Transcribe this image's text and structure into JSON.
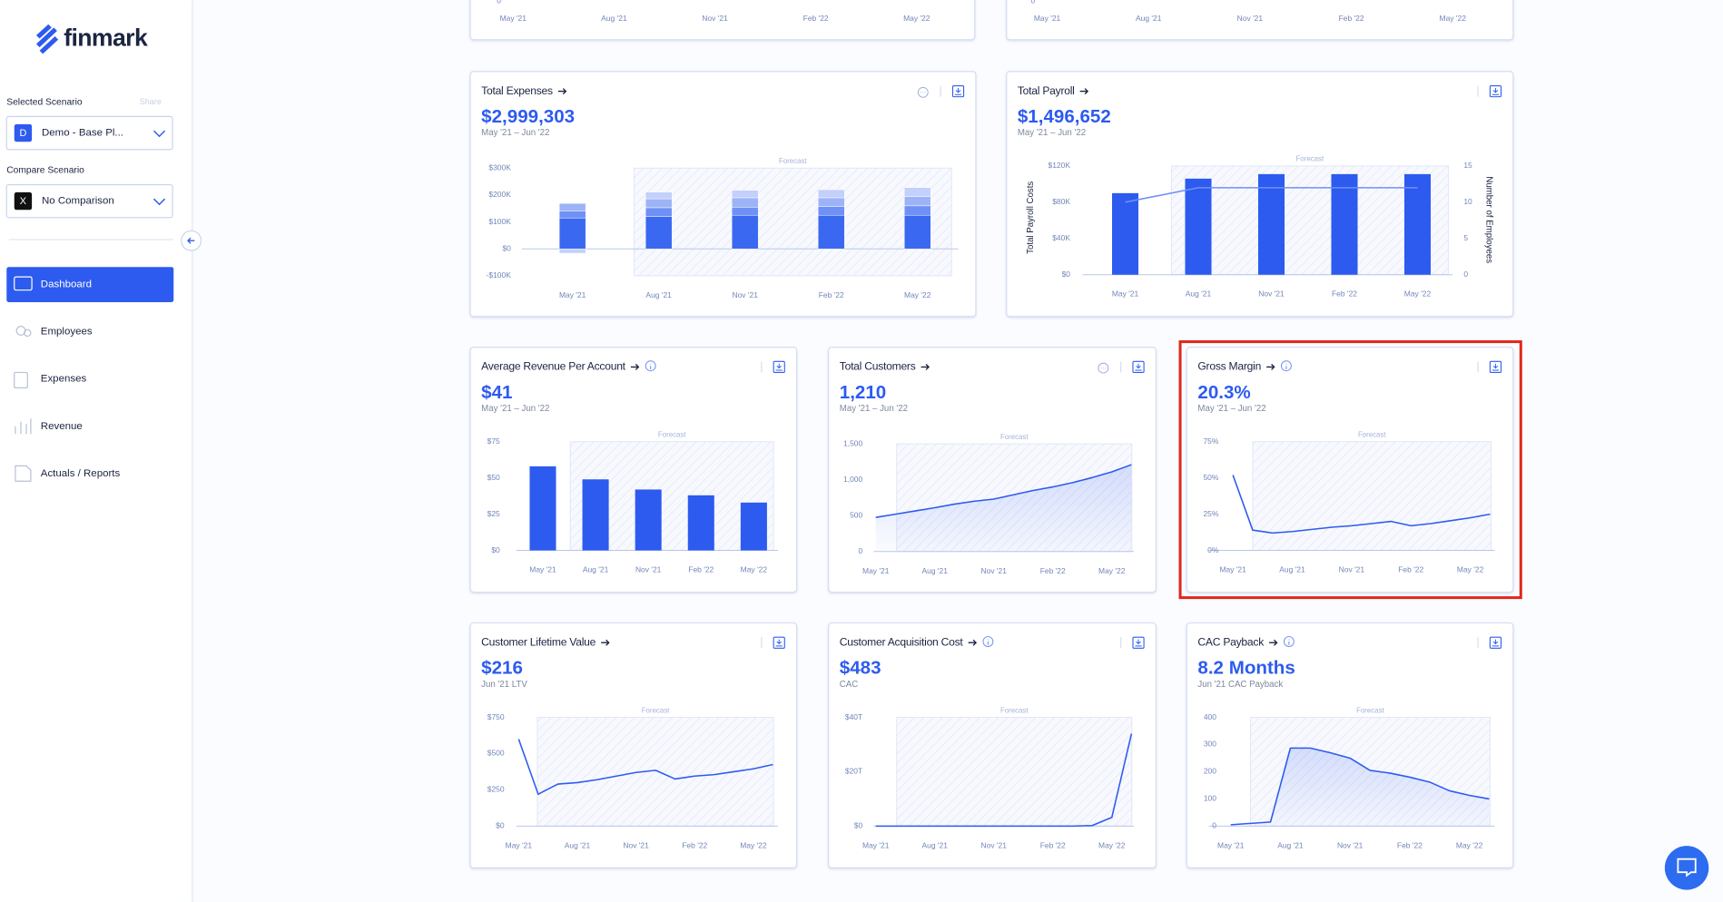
{
  "sidebar": {
    "logo": "finmark",
    "selected_label": "Selected Scenario",
    "share": "Share",
    "selected_badge": "D",
    "selected_value": "Demo - Base Pl...",
    "compare_label": "Compare Scenario",
    "compare_badge": "X",
    "compare_value": "No Comparison",
    "nav": [
      "Dashboard",
      "Employees",
      "Expenses",
      "Revenue",
      "Actuals / Reports"
    ]
  },
  "chart_data": [
    {
      "type": "line",
      "categories": [
        "May '21",
        null,
        null,
        "Aug '21",
        null,
        null,
        "Nov '21",
        null,
        null,
        "Feb '22",
        null,
        null,
        "May '22",
        null
      ],
      "yticks": [
        0
      ]
    },
    {
      "type": "line",
      "categories": [
        "May '21",
        null,
        null,
        "Aug '21",
        null,
        null,
        "Nov '21",
        null,
        null,
        "Feb '22",
        null,
        null,
        "May '22",
        null
      ],
      "yticks": [
        0
      ]
    },
    {
      "type": "bar",
      "title": "Total Expenses",
      "value": "$2,999,303",
      "subtitle": "May '21 – Jun '22",
      "forecast_label": "Forecast",
      "categories": [
        "May '21",
        "Aug '21",
        "Nov '21",
        "Feb '22",
        "May '22"
      ],
      "ylim": [
        -100000,
        300000
      ],
      "yticks": [
        {
          "value": 300000,
          "label": "$300K"
        },
        {
          "value": 200000,
          "label": "$200K"
        },
        {
          "value": 100000,
          "label": "$100K"
        },
        {
          "value": 0,
          "label": "$0"
        },
        {
          "value": -100000,
          "label": "-$100K"
        }
      ],
      "series": [
        {
          "color": "#3a68f0",
          "values": [
            115000,
            120000,
            125000,
            125000,
            125000
          ]
        },
        {
          "color": "#6f90f4",
          "values": [
            25000,
            33000,
            30000,
            32000,
            35000
          ]
        },
        {
          "color": "#9db3f8",
          "values": [
            29000,
            33000,
            35000,
            33000,
            35000
          ]
        },
        {
          "color": "#c2d0fb",
          "values": [
            0,
            25000,
            28000,
            30000,
            33000
          ]
        },
        {
          "color": "#c2d0fb",
          "values": [
            -16000,
            0,
            0,
            0,
            0
          ]
        }
      ]
    },
    {
      "type": "bar",
      "title": "Total Payroll",
      "value": "$1,496,652",
      "subtitle": "May '21 – Jun '22",
      "forecast_label": "Forecast",
      "y_label": "Total Payroll Costs",
      "y2_label": "Number of Employees",
      "categories": [
        "May '21",
        "Aug '21",
        "Nov '21",
        "Feb '22",
        "May '22"
      ],
      "ylim": [
        0,
        120000
      ],
      "yticks": [
        {
          "value": 120000,
          "label": "$120K"
        },
        {
          "value": 80000,
          "label": "$80K"
        },
        {
          "value": 40000,
          "label": "$40K"
        },
        {
          "value": 0,
          "label": "$0"
        }
      ],
      "y2lim": [
        0,
        15
      ],
      "y2ticks": [
        15,
        10,
        5,
        0
      ],
      "series": [
        {
          "color": "#2d5bef",
          "values": [
            90000,
            106000,
            111000,
            111000,
            111000
          ]
        },
        {
          "type": "line",
          "axis": "y2",
          "color": "#6f90f4",
          "values": [
            10,
            12,
            12,
            12,
            12
          ]
        }
      ]
    },
    {
      "type": "bar",
      "title": "Average Revenue Per Account",
      "value": "$41",
      "subtitle": "May '21 – Jun '22",
      "forecast_label": "Forecast",
      "categories": [
        "May '21",
        "Aug '21",
        "Nov '21",
        "Feb '22",
        "May '22"
      ],
      "ylim": [
        0,
        75
      ],
      "yticks": [
        {
          "value": 75,
          "label": "$75"
        },
        {
          "value": 50,
          "label": "$50"
        },
        {
          "value": 25,
          "label": "$25"
        },
        {
          "value": 0,
          "label": "$0"
        }
      ],
      "series": [
        {
          "color": "#2d5bef",
          "values": [
            58,
            49,
            42,
            38,
            33
          ]
        }
      ]
    },
    {
      "type": "line",
      "title": "Total Customers",
      "value": "1,210",
      "subtitle": "May '21 – Jun '22",
      "forecast_label": "Forecast",
      "area": true,
      "categories": [
        "May '21",
        null,
        null,
        "Aug '21",
        null,
        null,
        "Nov '21",
        null,
        null,
        "Feb '22",
        null,
        null,
        "May '22",
        null
      ],
      "ylim": [
        0,
        1500
      ],
      "yticks": [
        {
          "value": 1500,
          "label": "1,500"
        },
        {
          "value": 1000,
          "label": "1,000"
        },
        500,
        0
      ],
      "series": [
        {
          "color": "#2d5bef",
          "values": [
            475,
            520,
            565,
            610,
            660,
            700,
            730,
            790,
            850,
            900,
            960,
            1030,
            1110,
            1210
          ]
        }
      ]
    },
    {
      "type": "line",
      "title": "Gross Margin",
      "value": "20.3%",
      "subtitle": "May '21 – Jun '22",
      "forecast_label": "Forecast",
      "area": false,
      "categories": [
        "May '21",
        null,
        null,
        "Aug '21",
        null,
        null,
        "Nov '21",
        null,
        null,
        "Feb '22",
        null,
        null,
        "May '22",
        null
      ],
      "ylim": [
        0,
        75
      ],
      "yticks": [
        {
          "value": 75,
          "label": "75%"
        },
        {
          "value": 50,
          "label": "50%"
        },
        {
          "value": 25,
          "label": "25%"
        },
        {
          "value": 0,
          "label": "0%"
        }
      ],
      "series": [
        {
          "color": "#2d5bef",
          "values": [
            52,
            14,
            12,
            13,
            14.5,
            16,
            17,
            18.5,
            20,
            17,
            18.5,
            20.5,
            22.5,
            25
          ]
        }
      ]
    },
    {
      "type": "line",
      "title": "Customer Lifetime Value",
      "value": "$216",
      "subtitle": "Jun '21 LTV",
      "forecast_label": "Forecast",
      "area": false,
      "categories": [
        "May '21",
        null,
        null,
        "Aug '21",
        null,
        null,
        "Nov '21",
        null,
        null,
        "Feb '22",
        null,
        null,
        "May '22",
        null
      ],
      "ylim": [
        0,
        750
      ],
      "yticks": [
        {
          "value": 750,
          "label": "$750"
        },
        {
          "value": 500,
          "label": "$500"
        },
        {
          "value": 250,
          "label": "$250"
        },
        {
          "value": 0,
          "label": "$0"
        }
      ],
      "series": [
        {
          "color": "#2d5bef",
          "values": [
            600,
            220,
            290,
            300,
            320,
            345,
            370,
            385,
            325,
            345,
            355,
            375,
            395,
            425
          ]
        }
      ]
    },
    {
      "type": "line",
      "title": "Customer Acquisition Cost",
      "value": "$483",
      "subtitle": "CAC",
      "forecast_label": "Forecast",
      "area": false,
      "categories": [
        "May '21",
        null,
        null,
        "Aug '21",
        null,
        null,
        "Nov '21",
        null,
        null,
        "Feb '22",
        null,
        null,
        "May '22",
        null
      ],
      "ylim": [
        0,
        40000
      ],
      "yticks": [
        {
          "value": 40000,
          "label": "$40T"
        },
        {
          "value": 20000,
          "label": "$20T"
        },
        {
          "value": 0,
          "label": "$0"
        }
      ],
      "series": [
        {
          "color": "#2d5bef",
          "values": [
            0,
            0,
            0,
            0,
            0,
            0,
            0,
            0,
            0,
            0,
            0,
            200,
            3200,
            34000
          ]
        }
      ]
    },
    {
      "type": "line",
      "title": "CAC Payback",
      "value": "8.2 Months",
      "subtitle": "Jun '21 CAC Payback",
      "forecast_label": "Forecast",
      "area": true,
      "categories": [
        "May '21",
        null,
        null,
        "Aug '21",
        null,
        null,
        "Nov '21",
        null,
        null,
        "Feb '22",
        null,
        null,
        "May '22",
        null
      ],
      "ylim": [
        0,
        400
      ],
      "yticks": [
        400,
        300,
        200,
        100,
        0
      ],
      "series": [
        {
          "color": "#2d5bef",
          "values": [
            5,
            10,
            15,
            287,
            287,
            270,
            250,
            205,
            195,
            180,
            162,
            130,
            113,
            100
          ]
        }
      ]
    }
  ]
}
